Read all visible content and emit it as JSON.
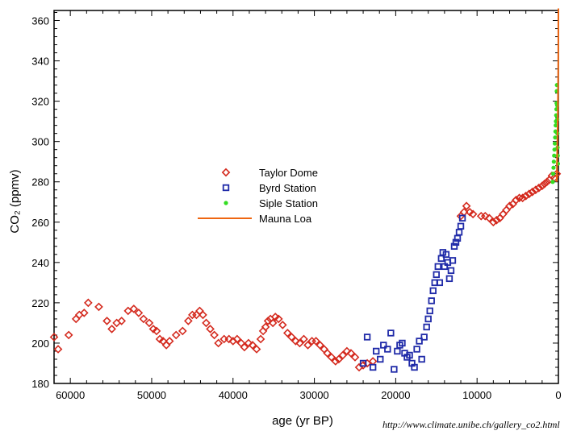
{
  "chart_data": {
    "type": "scatter",
    "xlabel": "age (yr BP)",
    "ylabel": "CO₂ (ppmv)",
    "xlim": [
      62000,
      0
    ],
    "ylim": [
      180,
      365
    ],
    "x_ticks": [
      60000,
      50000,
      40000,
      30000,
      20000,
      10000,
      0
    ],
    "y_ticks": [
      180,
      200,
      220,
      240,
      260,
      280,
      300,
      320,
      340,
      360
    ],
    "x_reversed": true,
    "grid": false,
    "legend_position": "center",
    "series": [
      {
        "name": "Taylor Dome",
        "marker": "diamond-open",
        "color": "#d42a1e",
        "points": [
          [
            62000,
            203
          ],
          [
            61500,
            197
          ],
          [
            60200,
            204
          ],
          [
            59300,
            212
          ],
          [
            58900,
            214
          ],
          [
            58300,
            215
          ],
          [
            57800,
            220
          ],
          [
            56500,
            218
          ],
          [
            55500,
            211
          ],
          [
            54900,
            207
          ],
          [
            54300,
            210
          ],
          [
            53700,
            211
          ],
          [
            52900,
            216
          ],
          [
            52200,
            217
          ],
          [
            51600,
            215
          ],
          [
            51000,
            212
          ],
          [
            50300,
            210
          ],
          [
            49800,
            207
          ],
          [
            49400,
            206
          ],
          [
            49000,
            202
          ],
          [
            48600,
            201
          ],
          [
            48200,
            199
          ],
          [
            47800,
            201
          ],
          [
            47000,
            204
          ],
          [
            46200,
            206
          ],
          [
            45500,
            211
          ],
          [
            45000,
            214
          ],
          [
            44500,
            214
          ],
          [
            44100,
            216
          ],
          [
            43700,
            214
          ],
          [
            43300,
            210
          ],
          [
            42800,
            207
          ],
          [
            42300,
            204
          ],
          [
            41800,
            200
          ],
          [
            41100,
            202
          ],
          [
            40500,
            202
          ],
          [
            40000,
            201
          ],
          [
            39500,
            202
          ],
          [
            39000,
            200
          ],
          [
            38600,
            198
          ],
          [
            38100,
            200
          ],
          [
            37600,
            199
          ],
          [
            37100,
            197
          ],
          [
            36600,
            202
          ],
          [
            36300,
            206
          ],
          [
            36000,
            208
          ],
          [
            35700,
            211
          ],
          [
            35400,
            212
          ],
          [
            35100,
            210
          ],
          [
            34800,
            213
          ],
          [
            34400,
            212
          ],
          [
            33900,
            209
          ],
          [
            33300,
            205
          ],
          [
            32800,
            203
          ],
          [
            32300,
            201
          ],
          [
            31800,
            200
          ],
          [
            31300,
            202
          ],
          [
            30800,
            199
          ],
          [
            30300,
            201
          ],
          [
            29800,
            201
          ],
          [
            29300,
            199
          ],
          [
            28800,
            197
          ],
          [
            28400,
            195
          ],
          [
            27900,
            193
          ],
          [
            27400,
            191
          ],
          [
            27000,
            192
          ],
          [
            26500,
            194
          ],
          [
            26000,
            196
          ],
          [
            25500,
            195
          ],
          [
            25000,
            193
          ],
          [
            24500,
            188
          ],
          [
            24000,
            189
          ],
          [
            23500,
            190
          ],
          [
            22800,
            191
          ],
          [
            12000,
            263
          ],
          [
            11600,
            265
          ],
          [
            11300,
            268
          ],
          [
            10900,
            265
          ],
          [
            10500,
            264
          ],
          [
            9500,
            263
          ],
          [
            9000,
            263
          ],
          [
            8500,
            262
          ],
          [
            8000,
            260
          ],
          [
            7600,
            261
          ],
          [
            7200,
            262
          ],
          [
            6800,
            264
          ],
          [
            6400,
            266
          ],
          [
            6000,
            268
          ],
          [
            5600,
            269
          ],
          [
            5200,
            271
          ],
          [
            4800,
            272
          ],
          [
            4400,
            272
          ],
          [
            4000,
            273
          ],
          [
            3600,
            274
          ],
          [
            3200,
            275
          ],
          [
            2800,
            276
          ],
          [
            2400,
            277
          ],
          [
            2000,
            278
          ],
          [
            1700,
            279
          ],
          [
            1400,
            280
          ],
          [
            1100,
            281
          ],
          [
            800,
            283
          ],
          [
            500,
            282
          ],
          [
            200,
            284
          ]
        ]
      },
      {
        "name": "Byrd Station",
        "marker": "square-open",
        "color": "#1f2aa8",
        "points": [
          [
            24000,
            190
          ],
          [
            23500,
            203
          ],
          [
            22800,
            188
          ],
          [
            22400,
            196
          ],
          [
            21900,
            192
          ],
          [
            21500,
            199
          ],
          [
            21000,
            197
          ],
          [
            20600,
            205
          ],
          [
            20200,
            187
          ],
          [
            19800,
            196
          ],
          [
            19500,
            199
          ],
          [
            19200,
            200
          ],
          [
            18900,
            195
          ],
          [
            18600,
            193
          ],
          [
            18300,
            194
          ],
          [
            18000,
            190
          ],
          [
            17700,
            188
          ],
          [
            17400,
            197
          ],
          [
            17100,
            201
          ],
          [
            16800,
            192
          ],
          [
            16500,
            203
          ],
          [
            16200,
            208
          ],
          [
            16000,
            212
          ],
          [
            15800,
            216
          ],
          [
            15600,
            221
          ],
          [
            15400,
            226
          ],
          [
            15200,
            230
          ],
          [
            15000,
            234
          ],
          [
            14800,
            238
          ],
          [
            14600,
            230
          ],
          [
            14400,
            242
          ],
          [
            14200,
            245
          ],
          [
            14000,
            238
          ],
          [
            13800,
            244
          ],
          [
            13600,
            240
          ],
          [
            13400,
            232
          ],
          [
            13200,
            236
          ],
          [
            13000,
            241
          ],
          [
            12800,
            248
          ],
          [
            12600,
            250
          ],
          [
            12400,
            252
          ],
          [
            12200,
            255
          ],
          [
            12000,
            258
          ],
          [
            11800,
            262
          ]
        ]
      },
      {
        "name": "Siple Station",
        "marker": "circle-filled",
        "color": "#33dd22",
        "points": [
          [
            700,
            280
          ],
          [
            650,
            284
          ],
          [
            600,
            287
          ],
          [
            560,
            290
          ],
          [
            520,
            293
          ],
          [
            480,
            296
          ],
          [
            440,
            299
          ],
          [
            400,
            302
          ],
          [
            360,
            305
          ],
          [
            330,
            308
          ],
          [
            300,
            310
          ],
          [
            270,
            313
          ],
          [
            240,
            316
          ],
          [
            220,
            319
          ],
          [
            200,
            325
          ],
          [
            180,
            328
          ],
          [
            160,
            318
          ],
          [
            140,
            311
          ],
          [
            120,
            304
          ],
          [
            100,
            297
          ],
          [
            80,
            293
          ],
          [
            60,
            289
          ]
        ]
      },
      {
        "name": "Mauna Loa",
        "marker": "line",
        "color": "#ee6611",
        "points": [
          [
            210,
            280
          ],
          [
            130,
            300
          ],
          [
            70,
            315
          ],
          [
            45,
            325
          ],
          [
            30,
            333
          ],
          [
            20,
            340
          ],
          [
            12,
            350
          ],
          [
            6,
            358
          ],
          [
            2,
            366
          ]
        ]
      }
    ]
  },
  "source_text": "http://www.climate.unibe.ch/gallery_co2.html"
}
